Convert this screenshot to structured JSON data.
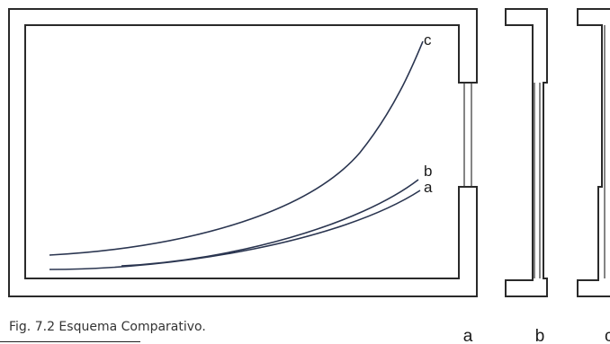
{
  "caption": "Fig. 7.2  Esquema Comparativo.",
  "curves": [
    {
      "label": "c"
    },
    {
      "label": "b"
    },
    {
      "label": "a"
    }
  ],
  "panels": [
    "a",
    "b",
    "c"
  ]
}
